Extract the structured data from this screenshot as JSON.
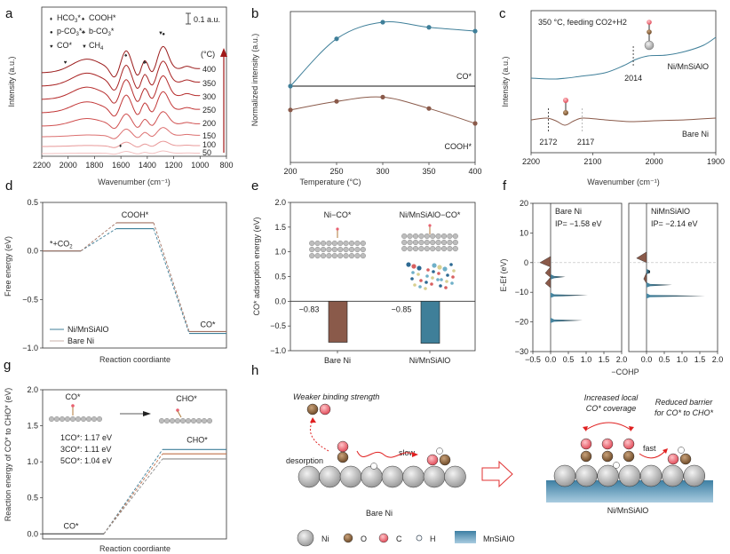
{
  "figure": {
    "panel_labels": [
      "a",
      "b",
      "c",
      "d",
      "e",
      "f",
      "g",
      "h"
    ]
  },
  "colors": {
    "blue": "#3f7f99",
    "brown": "#8a5a4a",
    "orange": "#c0704a",
    "grey": "#8a8a8a",
    "red_arrow": "#b22222",
    "ni_atom": "#bdbdbd",
    "o_atom": "#8b6640",
    "c_atom": "#e8606a",
    "support": "#4e8fb0"
  },
  "chart_data": [
    {
      "panel": "a",
      "type": "line",
      "title": "",
      "xlabel": "Wavenumber (cm⁻¹)",
      "ylabel": "Intensity (a.u.)",
      "xlim": [
        2200,
        800
      ],
      "xticks": [
        "2200",
        "2000",
        "1800",
        "1600",
        "1400",
        "1200",
        "1000",
        "800"
      ],
      "scale_bar": "0.1 a.u.",
      "temperature_unit": "(°C)",
      "series_labels": [
        "400",
        "350",
        "300",
        "250",
        "200",
        "150",
        "100",
        "50"
      ],
      "legend": [
        {
          "symbol": "diamond",
          "label": "HCO3*"
        },
        {
          "symbol": "spade",
          "label": "COOH*"
        },
        {
          "symbol": "circle",
          "label": "p-CO3*"
        },
        {
          "symbol": "club",
          "label": "b-CO3*"
        },
        {
          "symbol": "heart",
          "label": "CO*"
        },
        {
          "symbol": "triangle-down",
          "label": "CH4"
        }
      ],
      "peak_markers": [
        {
          "symbol": "heart",
          "x": 2020
        },
        {
          "symbol": "spade",
          "x": 1560
        },
        {
          "symbol": "club",
          "x": 1420
        },
        {
          "symbol": "triangle-down",
          "x": 1305
        },
        {
          "symbol": "circle",
          "x": 1275
        },
        {
          "symbol": "diamond",
          "x": 1600
        }
      ]
    },
    {
      "panel": "b",
      "type": "line",
      "xlabel": "Temperature (°C)",
      "ylabel": "Normalized intensity (a.u.)",
      "xlim": [
        200,
        400
      ],
      "xticks": [
        "200",
        "250",
        "300",
        "350",
        "400"
      ],
      "series": [
        {
          "name": "CO*",
          "x": [
            200,
            250,
            300,
            350,
            400
          ],
          "values": [
            0.0,
            0.74,
            1.0,
            0.92,
            0.86
          ]
        },
        {
          "name": "COOH*",
          "x": [
            200,
            250,
            300,
            350,
            400
          ],
          "values": [
            0.74,
            0.86,
            0.92,
            0.76,
            0.55
          ]
        }
      ]
    },
    {
      "panel": "c",
      "type": "line",
      "xlabel": "Wavenumber (cm⁻¹)",
      "ylabel": "Intensity (a.u.)",
      "xlim": [
        2200,
        1900
      ],
      "xticks": [
        "2200",
        "2100",
        "2000",
        "1900"
      ],
      "annotation": "350 °C, feeding CO2+H2",
      "series": [
        {
          "name": "Ni/MnSiAlO"
        },
        {
          "name": "Bare Ni"
        }
      ],
      "marked_peaks": [
        "2014",
        "2172",
        "2117"
      ]
    },
    {
      "panel": "d",
      "type": "line",
      "xlabel": "Reaction coordiante",
      "ylabel": "Free energy (eV)",
      "ylim": [
        -1.0,
        0.5
      ],
      "yticks": [
        "0.5",
        "0.0",
        "−0.5",
        "−1.0"
      ],
      "states": [
        "*+CO2",
        "COOH*",
        "CO*"
      ],
      "series": [
        {
          "name": "Ni/MnSiAlO",
          "values": [
            0.0,
            0.23,
            -0.85
          ]
        },
        {
          "name": "Bare Ni",
          "values": [
            0.0,
            0.29,
            -0.83
          ]
        }
      ]
    },
    {
      "panel": "e",
      "type": "bar",
      "ylabel": "CO* adsorption energy (eV)",
      "ylim": [
        -1.0,
        2.0
      ],
      "yticks": [
        "2.0",
        "1.5",
        "1.0",
        "0.5",
        "0.0",
        "−0.5",
        "−1.0"
      ],
      "categories": [
        "Bare Ni",
        "Ni/MnSiAlO"
      ],
      "values": [
        -0.83,
        -0.85
      ],
      "value_labels": [
        "−0.83",
        "−0.85"
      ],
      "structure_labels": [
        "Ni−CO*",
        "Ni/MnSiAlO−CO*"
      ]
    },
    {
      "panel": "f",
      "type": "area",
      "xlabel": "−COHP",
      "ylabel": "E-Ef (eV)",
      "ylim": [
        -30,
        20
      ],
      "yticks": [
        "20",
        "10",
        "0",
        "−10",
        "−20",
        "−30"
      ],
      "subplots": [
        {
          "name": "Bare Ni",
          "ip": "IP= −1.58 eV",
          "xlim": [
            -0.5,
            2.0
          ],
          "xticks": [
            "−0.5",
            "0.0",
            "0.5",
            "1.0",
            "1.5",
            "2.0"
          ],
          "peaks": [
            {
              "e": -4.8,
              "v": 0.42
            },
            {
              "e": -11,
              "v": 1.05
            },
            {
              "e": -19.5,
              "v": 0.9
            }
          ],
          "neg": [
            {
              "e": 0,
              "v": -0.3
            },
            {
              "e": -3.5,
              "v": -0.15
            },
            {
              "e": -7,
              "v": -0.15
            }
          ]
        },
        {
          "name": "NiMnSiAlO",
          "ip": "IP= −2.14 eV",
          "xlim": [
            -0.5,
            2.0
          ],
          "xticks": [
            "0.0",
            "0.5",
            "1.0",
            "1.5",
            "2.0"
          ],
          "peaks": [
            {
              "e": -3,
              "v": 0.1
            },
            {
              "e": -7.5,
              "v": 0.72
            },
            {
              "e": -11.2,
              "v": 1.65
            }
          ],
          "neg": [
            {
              "e": 1.5,
              "v": -0.28
            },
            {
              "e": -5.5,
              "v": -0.08
            }
          ]
        }
      ]
    },
    {
      "panel": "g",
      "type": "line",
      "xlabel": "Reaction coordiante",
      "ylabel": "Reaction energy of CO* to CHO* (eV)",
      "ylim": [
        -0.1,
        2.0
      ],
      "yticks": [
        "2.0",
        "1.5",
        "1.0",
        "0.5",
        "0.0"
      ],
      "states": [
        "CO*",
        "CHO*"
      ],
      "series": [
        {
          "name": "1CO*",
          "label": "1CO*: 1.17 eV",
          "values": [
            0.0,
            1.17
          ]
        },
        {
          "name": "3CO*",
          "label": "3CO*: 1.11 eV",
          "values": [
            0.0,
            1.11
          ]
        },
        {
          "name": "5CO*",
          "label": "5CO*: 1.04 eV",
          "values": [
            0.0,
            1.04
          ]
        }
      ],
      "inset_labels": [
        "CO*",
        "CHO*"
      ]
    }
  ],
  "schematic_h": {
    "left_title": "Weaker binding strength",
    "desorption": "desorption",
    "slow": "slow",
    "left_caption": "Bare Ni",
    "right_title_1": "Increased local",
    "right_title_2": "CO* coverage",
    "right_note_1": "Reduced barrier",
    "right_note_2": "for CO* to CHO*",
    "fast": "fast",
    "right_caption": "Ni/MnSiAlO",
    "legend": [
      {
        "atom": "Ni"
      },
      {
        "atom": "O"
      },
      {
        "atom": "C"
      },
      {
        "atom": "H"
      },
      {
        "atom": "MnSiAlO"
      }
    ]
  }
}
